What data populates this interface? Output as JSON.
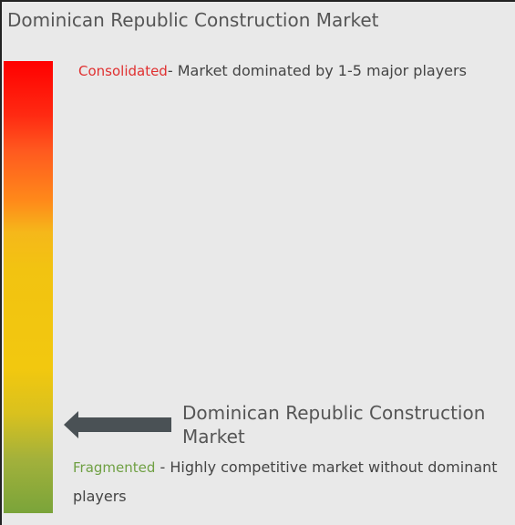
{
  "title": "Dominican Republic Construction Market",
  "consolidated": {
    "label": "Consolidated",
    "text": "- Market dominated by 1-5 major players"
  },
  "marker": {
    "label": "Dominican Republic Construction Market"
  },
  "fragmented": {
    "label": "Fragmented",
    "text": " - Highly competitive market without dominant players"
  },
  "colors": {
    "consolidated": "#e03030",
    "fragmented": "#6fa043",
    "arrow": "#4a5155"
  }
}
